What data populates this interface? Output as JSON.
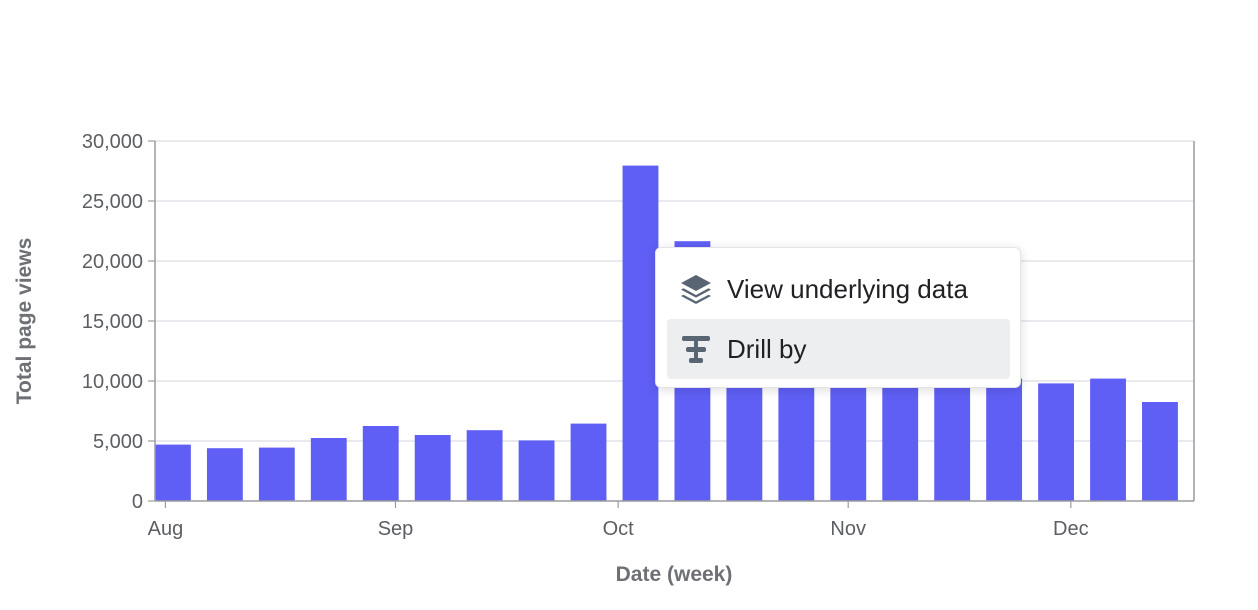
{
  "chart_data": {
    "type": "bar",
    "xlabel": "Date (week)",
    "ylabel": "Total page views",
    "ylim": [
      0,
      30000
    ],
    "y_ticks": [
      "0",
      "5,000",
      "10,000",
      "15,000",
      "20,000",
      "25,000",
      "30,000"
    ],
    "x_tick_labels": [
      "Aug",
      "Sep",
      "Oct",
      "Nov",
      "Dec"
    ],
    "categories": [
      "2023-07-31",
      "2023-08-07",
      "2023-08-14",
      "2023-08-21",
      "2023-08-28",
      "2023-09-04",
      "2023-09-11",
      "2023-09-18",
      "2023-09-25",
      "2023-10-02",
      "2023-10-09",
      "2023-10-16",
      "2023-10-23",
      "2023-10-30",
      "2023-11-06",
      "2023-11-13",
      "2023-11-20",
      "2023-11-27",
      "2023-12-04",
      "2023-12-11"
    ],
    "values": [
      4700,
      4400,
      4450,
      5250,
      6250,
      5500,
      5900,
      5050,
      6450,
      27950,
      21650,
      17000,
      14800,
      13600,
      12100,
      11200,
      10200,
      9800,
      10200,
      8250
    ],
    "color": "#5f5ff5",
    "grid": true
  },
  "context_menu": {
    "items": [
      {
        "label": "View underlying data",
        "icon": "layers-icon"
      },
      {
        "label": "Drill by",
        "icon": "drill-icon"
      }
    ]
  }
}
